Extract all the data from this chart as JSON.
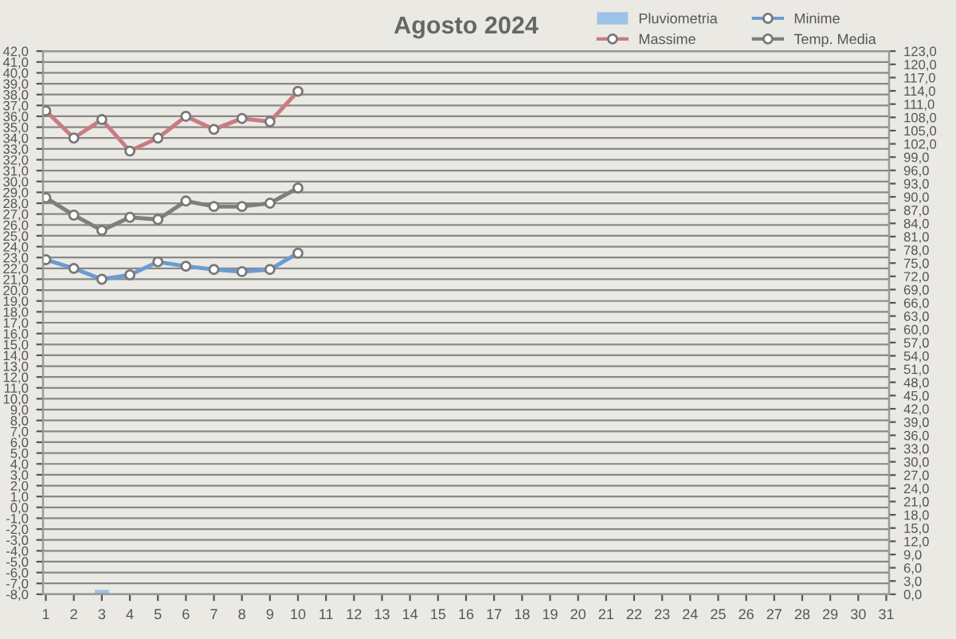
{
  "chart_data": {
    "type": "line",
    "title": "Agosto 2024",
    "categories": [
      "1",
      "2",
      "3",
      "4",
      "5",
      "6",
      "7",
      "8",
      "9",
      "10",
      "11",
      "12",
      "13",
      "14",
      "15",
      "16",
      "17",
      "18",
      "19",
      "20",
      "21",
      "22",
      "23",
      "24",
      "25",
      "26",
      "27",
      "28",
      "29",
      "30",
      "31"
    ],
    "series": [
      {
        "name": "Pluviometria",
        "type": "bar",
        "axis": "y2",
        "color": "#9dc3e6",
        "values": [
          null,
          null,
          1,
          null,
          null,
          null,
          null,
          null,
          null,
          null,
          null,
          null,
          null,
          null,
          null,
          null,
          null,
          null,
          null,
          null,
          null,
          null,
          null,
          null,
          null,
          null,
          null,
          null,
          null,
          null,
          null
        ]
      },
      {
        "name": "Massime",
        "color": "#c97c80",
        "values": [
          36.5,
          34.0,
          35.7,
          32.8,
          34.0,
          36.0,
          34.8,
          35.8,
          35.5,
          38.3,
          null,
          null,
          null,
          null,
          null,
          null,
          null,
          null,
          null,
          null,
          null,
          null,
          null,
          null,
          null,
          null,
          null,
          null,
          null,
          null,
          null
        ]
      },
      {
        "name": "Minime",
        "color": "#6b9bd2",
        "values": [
          22.8,
          22.0,
          21.0,
          21.4,
          22.6,
          22.2,
          21.9,
          21.7,
          21.9,
          23.4,
          null,
          null,
          null,
          null,
          null,
          null,
          null,
          null,
          null,
          null,
          null,
          null,
          null,
          null,
          null,
          null,
          null,
          null,
          null,
          null,
          null
        ]
      },
      {
        "name": "Temp. Media",
        "color": "#7f7f7f",
        "values": [
          28.5,
          26.9,
          25.5,
          26.7,
          26.5,
          28.2,
          27.7,
          27.7,
          28.0,
          29.4,
          null,
          null,
          null,
          null,
          null,
          null,
          null,
          null,
          null,
          null,
          null,
          null,
          null,
          null,
          null,
          null,
          null,
          null,
          null,
          null,
          null
        ]
      }
    ],
    "ylim": [
      -8,
      42
    ],
    "yticks": [
      {
        "value": -8,
        "label": "-8,0"
      },
      {
        "value": -7,
        "label": "-7,0"
      },
      {
        "value": -6,
        "label": "-6,0"
      },
      {
        "value": -5,
        "label": "-5,0"
      },
      {
        "value": -4,
        "label": "-4,0"
      },
      {
        "value": -3,
        "label": "-3,0"
      },
      {
        "value": -2,
        "label": "-2,0"
      },
      {
        "value": -1,
        "label": "-1,0"
      },
      {
        "value": 0,
        "label": "0,0"
      },
      {
        "value": 1,
        "label": "1,0"
      },
      {
        "value": 2,
        "label": "2,0"
      },
      {
        "value": 3,
        "label": "3,0"
      },
      {
        "value": 4,
        "label": "4,0"
      },
      {
        "value": 5,
        "label": "5,0"
      },
      {
        "value": 6,
        "label": "6,0"
      },
      {
        "value": 7,
        "label": "7,0"
      },
      {
        "value": 8,
        "label": "8,0"
      },
      {
        "value": 9,
        "label": "9,0"
      },
      {
        "value": 10,
        "label": "10,0"
      },
      {
        "value": 11,
        "label": "11,0"
      },
      {
        "value": 12,
        "label": "12,0"
      },
      {
        "value": 13,
        "label": "13,0"
      },
      {
        "value": 14,
        "label": "14,0"
      },
      {
        "value": 15,
        "label": "15,0"
      },
      {
        "value": 16,
        "label": "16,0"
      },
      {
        "value": 17,
        "label": "17,0"
      },
      {
        "value": 18,
        "label": "18,0"
      },
      {
        "value": 19,
        "label": "19,0"
      },
      {
        "value": 20,
        "label": "20,0"
      },
      {
        "value": 21,
        "label": "21,0"
      },
      {
        "value": 22,
        "label": "22,0"
      },
      {
        "value": 23,
        "label": "23,0"
      },
      {
        "value": 24,
        "label": "24,0"
      },
      {
        "value": 25,
        "label": "25,0"
      },
      {
        "value": 26,
        "label": "26,0"
      },
      {
        "value": 27,
        "label": "27,0"
      },
      {
        "value": 28,
        "label": "28,0"
      },
      {
        "value": 29,
        "label": "29,0"
      },
      {
        "value": 30,
        "label": "30,0"
      },
      {
        "value": 31,
        "label": "31,0"
      },
      {
        "value": 32,
        "label": "32,0"
      },
      {
        "value": 33,
        "label": "33,0"
      },
      {
        "value": 34,
        "label": "34,0"
      },
      {
        "value": 35,
        "label": "35,0"
      },
      {
        "value": 36,
        "label": "36,0"
      },
      {
        "value": 37,
        "label": "37,0"
      },
      {
        "value": 38,
        "label": "38,0"
      },
      {
        "value": 39,
        "label": "39,0"
      },
      {
        "value": 40,
        "label": "40,0"
      },
      {
        "value": 41,
        "label": "41,0"
      },
      {
        "value": 42,
        "label": "42,0"
      }
    ],
    "y2lim": [
      0,
      123
    ],
    "y2ticks": [
      {
        "value": 0,
        "label": "0,0"
      },
      {
        "value": 3,
        "label": "3,0"
      },
      {
        "value": 6,
        "label": "6,0"
      },
      {
        "value": 9,
        "label": "9,0"
      },
      {
        "value": 12,
        "label": "12,0"
      },
      {
        "value": 15,
        "label": "15,0"
      },
      {
        "value": 18,
        "label": "18,0"
      },
      {
        "value": 21,
        "label": "21,0"
      },
      {
        "value": 24,
        "label": "24,0"
      },
      {
        "value": 27,
        "label": "27,0"
      },
      {
        "value": 30,
        "label": "30,0"
      },
      {
        "value": 33,
        "label": "33,0"
      },
      {
        "value": 36,
        "label": "36,0"
      },
      {
        "value": 39,
        "label": "39,0"
      },
      {
        "value": 42,
        "label": "42,0"
      },
      {
        "value": 45,
        "label": "45,0"
      },
      {
        "value": 48,
        "label": "48,0"
      },
      {
        "value": 51,
        "label": "51,0"
      },
      {
        "value": 54,
        "label": "54,0"
      },
      {
        "value": 57,
        "label": "57,0"
      },
      {
        "value": 60,
        "label": "60,0"
      },
      {
        "value": 63,
        "label": "63,0"
      },
      {
        "value": 66,
        "label": "66,0"
      },
      {
        "value": 69,
        "label": "69,0"
      },
      {
        "value": 72,
        "label": "72,0"
      },
      {
        "value": 75,
        "label": "75,0"
      },
      {
        "value": 78,
        "label": "78,0"
      },
      {
        "value": 81,
        "label": "81,0"
      },
      {
        "value": 84,
        "label": "84,0"
      },
      {
        "value": 87,
        "label": "87,0"
      },
      {
        "value": 90,
        "label": "90,0"
      },
      {
        "value": 93,
        "label": "93,0"
      },
      {
        "value": 96,
        "label": "96,0"
      },
      {
        "value": 99,
        "label": "99,0"
      },
      {
        "value": 102,
        "label": "102,0"
      },
      {
        "value": 105,
        "label": "105,0"
      },
      {
        "value": 108,
        "label": "108,0"
      },
      {
        "value": 111,
        "label": "111,0"
      },
      {
        "value": 114,
        "label": "114,0"
      },
      {
        "value": 117,
        "label": "117,0"
      },
      {
        "value": 120,
        "label": "120,0"
      },
      {
        "value": 123,
        "label": "123,0"
      }
    ],
    "grid": "y",
    "legend": "top right",
    "marker": "circle",
    "line_style": "solid"
  }
}
